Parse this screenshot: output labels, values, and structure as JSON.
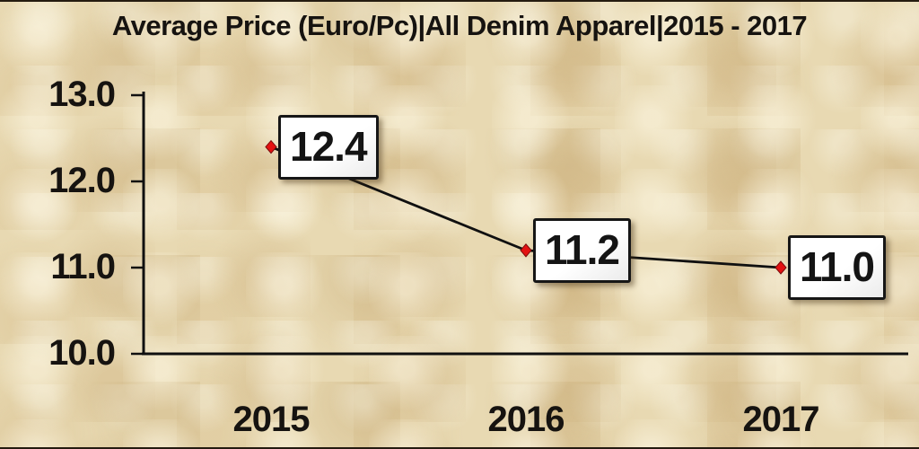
{
  "chart_data": {
    "type": "line",
    "title": "Average Price (Euro/Pc)|All Denim Apparel|2015 - 2017",
    "categories": [
      "2015",
      "2016",
      "2017"
    ],
    "series": [
      {
        "name": "Average Price (Euro/Pc)",
        "values": [
          12.4,
          11.2,
          11.0
        ]
      }
    ],
    "value_labels": [
      "12.4",
      "11.2",
      "11.0"
    ],
    "yticks": [
      13.0,
      12.0,
      11.0,
      10.0
    ],
    "ytick_labels": [
      "13.0",
      "12.0",
      "11.0",
      "10.0"
    ],
    "ylim": [
      10.0,
      13.0
    ],
    "xlabel": "",
    "ylabel": "",
    "grid": false,
    "legend_position": "none",
    "line_color": "#101010",
    "marker_shape": "diamond",
    "marker_color": "#e31212",
    "marker_edge_color": "#7a0b0b",
    "axis_color": "#101010",
    "label_box_background": "#ffffff",
    "label_box_border": "#161616",
    "background_color": "#e8d9b2"
  }
}
